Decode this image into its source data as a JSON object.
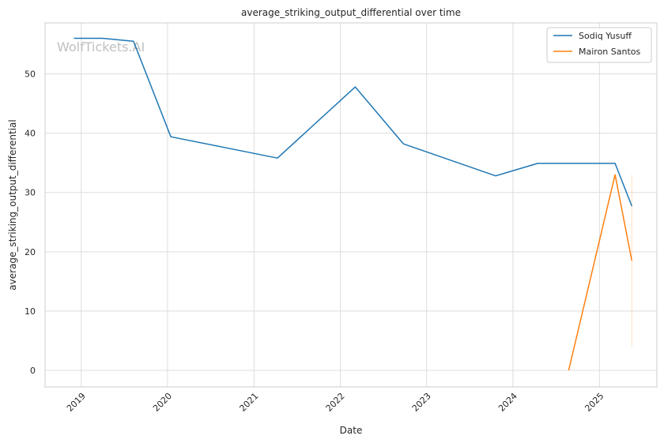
{
  "chart_data": {
    "type": "line",
    "title": "average_striking_output_differential over time",
    "xlabel": "Date",
    "ylabel": "average_striking_output_differential",
    "watermark": "WolfTickets.AI",
    "xlim": [
      "2018-08-01",
      "2025-09-01"
    ],
    "ylim": [
      -2.8,
      58.6
    ],
    "x_ticks": [
      "2019-01-01",
      "2020-01-01",
      "2021-01-01",
      "2022-01-01",
      "2023-01-01",
      "2024-01-01",
      "2025-01-01"
    ],
    "x_tick_labels": [
      "2019",
      "2020",
      "2021",
      "2022",
      "2023",
      "2024",
      "2025"
    ],
    "y_ticks": [
      0,
      10,
      20,
      30,
      40,
      50
    ],
    "y_tick_labels": [
      "0",
      "10",
      "20",
      "30",
      "40",
      "50"
    ],
    "grid": true,
    "legend_position": "top-right",
    "series": [
      {
        "name": "Sodiq Yusuff",
        "color": "#1f77b4",
        "points": [
          {
            "x": "2018-12-01",
            "y": 56.0
          },
          {
            "x": "2019-04-01",
            "y": 56.0
          },
          {
            "x": "2019-08-10",
            "y": 55.5
          },
          {
            "x": "2020-01-15",
            "y": 39.4
          },
          {
            "x": "2021-04-10",
            "y": 35.8
          },
          {
            "x": "2022-03-05",
            "y": 47.8
          },
          {
            "x": "2022-09-25",
            "y": 38.2
          },
          {
            "x": "2023-10-20",
            "y": 32.8
          },
          {
            "x": "2024-04-15",
            "y": 34.9
          },
          {
            "x": "2025-03-08",
            "y": 34.9
          },
          {
            "x": "2025-05-18",
            "y": 27.7
          }
        ]
      },
      {
        "name": "Mairon Santos",
        "color": "#ff7f0e",
        "points": [
          {
            "x": "2024-08-24",
            "y": 0.0
          },
          {
            "x": "2025-03-08",
            "y": 33.0
          },
          {
            "x": "2025-05-18",
            "y": 18.5
          }
        ],
        "band": {
          "x": "2025-05-18",
          "low": 4.0,
          "high": 33.0
        }
      }
    ]
  }
}
